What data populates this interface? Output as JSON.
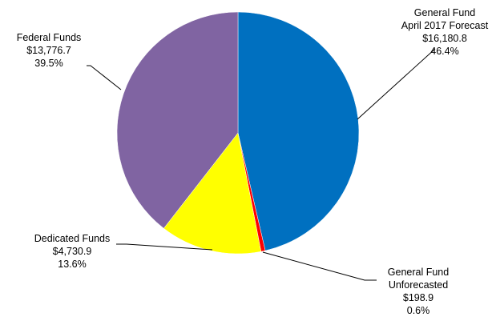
{
  "chart_data": {
    "type": "pie",
    "title": "",
    "start_angle_deg": 0,
    "direction": "clockwise",
    "slices": [
      {
        "name_lines": [
          "General Fund",
          "April 2017 Forecast"
        ],
        "value_label": "$16,180.8",
        "percent_label": "46.4%",
        "value": 16180.8,
        "percent": 46.4,
        "color": "#0070C0"
      },
      {
        "name_lines": [
          "General Fund",
          "Unforecasted"
        ],
        "value_label": "$198.9",
        "percent_label": "0.6%",
        "value": 198.9,
        "percent": 0.6,
        "color": "#FF0000"
      },
      {
        "name_lines": [
          "Dedicated Funds"
        ],
        "value_label": "$4,730.9",
        "percent_label": "13.6%",
        "value": 4730.9,
        "percent": 13.6,
        "color": "#FFFF00"
      },
      {
        "name_lines": [
          "Federal Funds"
        ],
        "value_label": "$13,776.7",
        "percent_label": "39.5%",
        "value": 13776.7,
        "percent": 39.5,
        "color": "#8064A2"
      }
    ],
    "legend": "none",
    "data_labels": "outside-with-leader-lines"
  }
}
